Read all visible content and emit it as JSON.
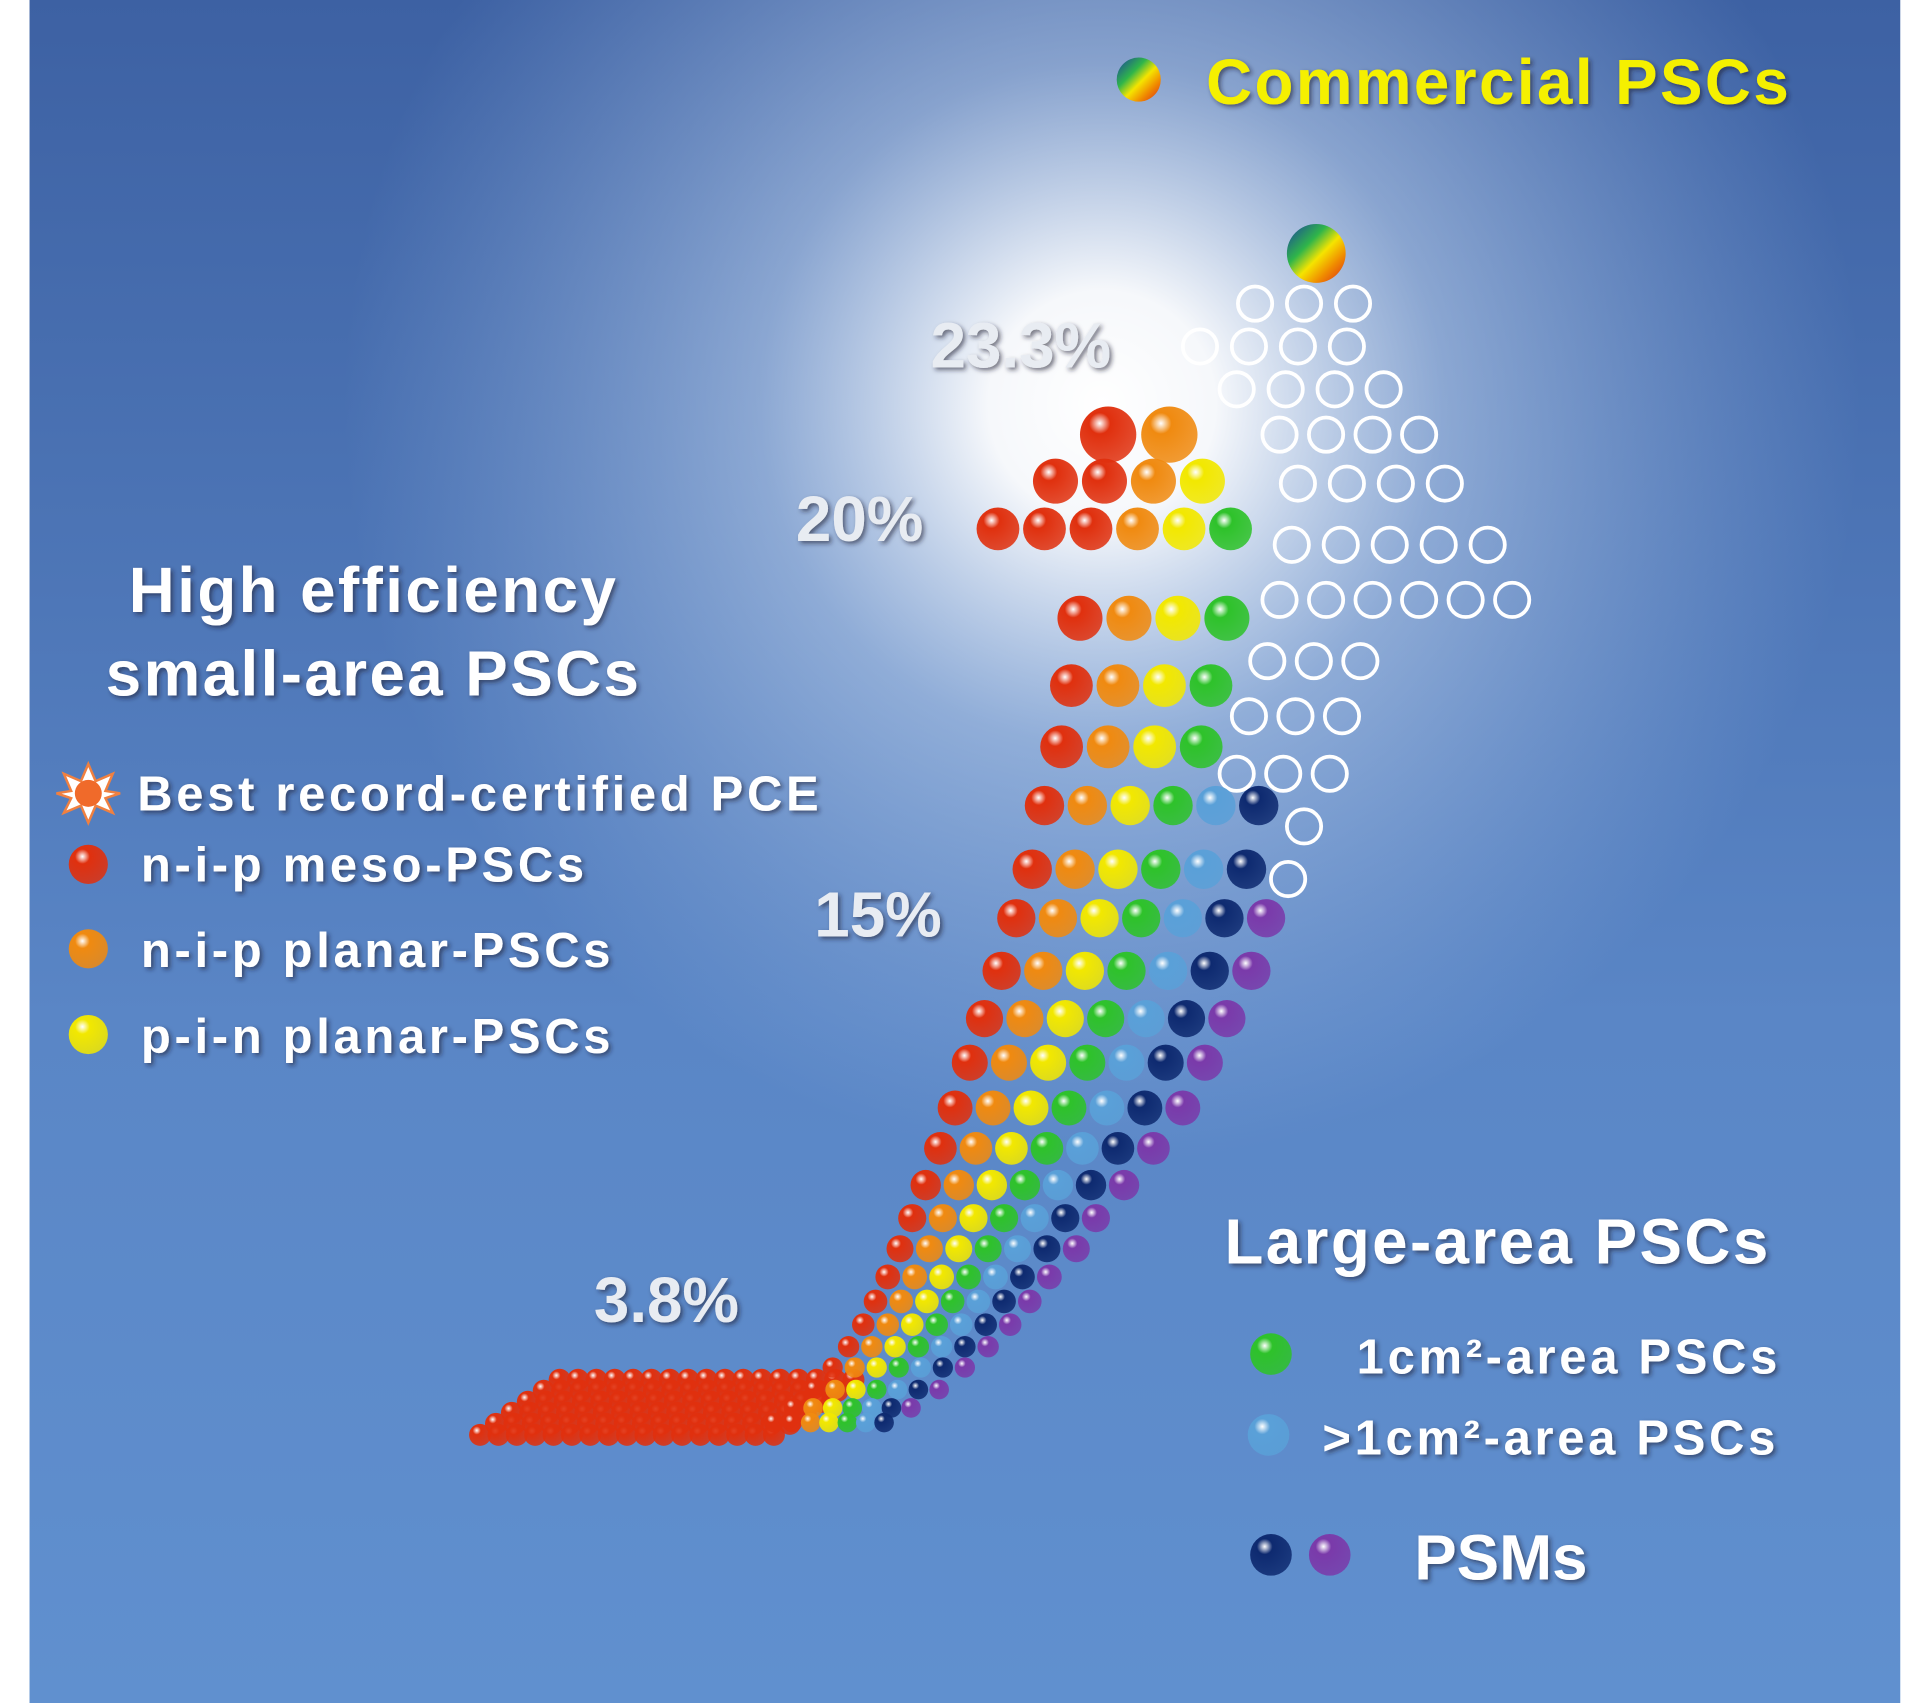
{
  "title": "Commercial PSCs",
  "efficiency_labels": [
    "23.3%",
    "20%",
    "15%",
    "3.8%"
  ],
  "small_area": {
    "title_lines": [
      "High efficiency",
      "small-area PSCs"
    ],
    "legend": [
      "Best record-certified PCE",
      "n-i-p meso-PSCs",
      "n-i-p planar-PSCs",
      "p-i-n planar-PSCs"
    ]
  },
  "large_area": {
    "title": "Large-area PSCs",
    "legend": [
      "1cm²-area PSCs",
      ">1cm²-area PSCs",
      "PSMs"
    ]
  }
}
